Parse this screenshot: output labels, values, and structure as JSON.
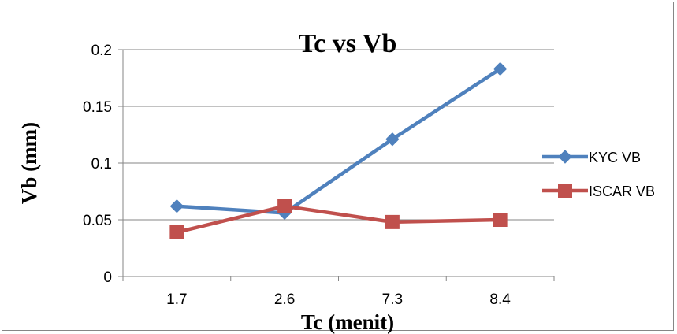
{
  "chart_data": {
    "type": "line",
    "title": "Tc vs Vb",
    "xlabel": "Tc (menit)",
    "ylabel": "Vb (mm)",
    "categories": [
      "1.7",
      "2.6",
      "7.3",
      "8.4"
    ],
    "ylim": [
      0,
      0.2
    ],
    "yticks": [
      "0",
      "0.05",
      "0.1",
      "0.15",
      "0.2"
    ],
    "grid": "horizontal",
    "legend": "right",
    "series": [
      {
        "name": "KYC VB",
        "values": [
          0.062,
          0.056,
          0.121,
          0.183
        ],
        "color": "#4F81BD",
        "marker": "diamond"
      },
      {
        "name": "ISCAR VB",
        "values": [
          0.039,
          0.062,
          0.048,
          0.05
        ],
        "color": "#C0504D",
        "marker": "square"
      }
    ]
  }
}
